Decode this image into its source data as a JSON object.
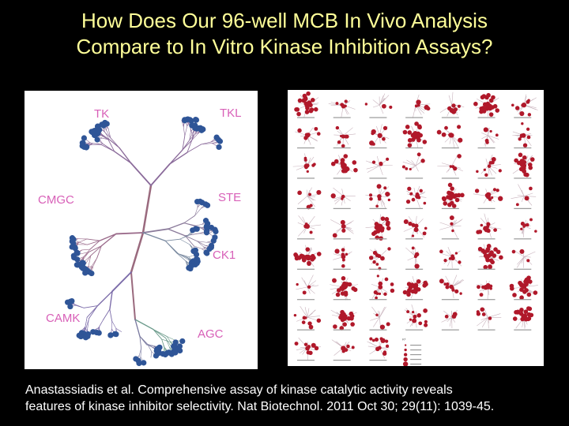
{
  "title": {
    "line1": "How Does Our 96-well MCB In Vivo Analysis",
    "line2": "Compare to In Vitro Kinase Inhibition Assays?"
  },
  "kinome_tree": {
    "family_labels": {
      "tk": "TK",
      "tkl": "TKL",
      "cmgc": "CMGC",
      "ste": "STE",
      "ck1": "CK1",
      "camk": "CAMK",
      "agc": "AGC"
    }
  },
  "inhibitor_grid": {
    "rows": 9,
    "cols": 7,
    "legend_header": "Kᵈ"
  },
  "caption": {
    "line1": "Anastassiadis et al. Comprehensive assay of kinase catalytic activity reveals",
    "line2": "features of kinase inhibitor selectivity. Nat Biotechnol. 2011 Oct 30; 29(11): 1039-45."
  },
  "colors": {
    "background": "#000000",
    "title": "#ffff99",
    "caption": "#ffffff",
    "family_label": "#d860b8",
    "kinase_dot": "#2f5597",
    "inhibitor_dot": "#b0182a"
  }
}
